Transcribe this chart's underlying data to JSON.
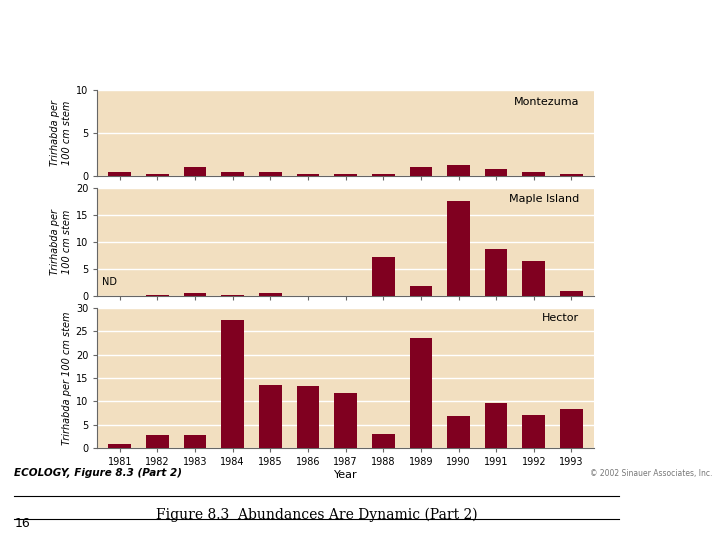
{
  "years": [
    1981,
    1982,
    1983,
    1984,
    1985,
    1986,
    1987,
    1988,
    1989,
    1990,
    1991,
    1992,
    1993
  ],
  "montezuma": [
    0.5,
    0.2,
    1.0,
    0.5,
    0.5,
    0.2,
    0.2,
    0.2,
    1.0,
    1.3,
    0.8,
    0.5,
    0.2
  ],
  "maple_island": [
    0.0,
    0.2,
    0.6,
    0.2,
    0.6,
    0.0,
    0.0,
    7.2,
    1.8,
    17.5,
    8.7,
    6.5,
    1.0
  ],
  "hector": [
    0.8,
    2.8,
    2.8,
    27.5,
    13.5,
    13.3,
    11.8,
    3.0,
    23.5,
    6.8,
    9.7,
    7.0,
    8.3
  ],
  "bar_color": "#800020",
  "bg_color": "#f2dfc0",
  "fig_bg": "#ffffff",
  "montezuma_ylim": [
    0,
    10
  ],
  "montezuma_yticks": [
    0,
    5,
    10
  ],
  "maple_ylim": [
    0,
    20
  ],
  "maple_yticks": [
    0,
    5,
    10,
    15,
    20
  ],
  "hector_ylim": [
    0,
    30
  ],
  "hector_yticks": [
    0,
    5,
    10,
    15,
    20,
    25,
    30
  ],
  "ylabel_montezuma": "Trirhabda per\n100 cm stem",
  "ylabel_maple": "Trirhabda per\n100 cm stem",
  "ylabel_hector": "Trirhabda per 100 cm stem",
  "xlabel": "Year",
  "label_montezuma": "Montezuma",
  "label_maple": "Maple Island",
  "label_hector": "Hector",
  "nd_label": "ND",
  "figure_caption": "Figure 8.3  Abundances Are Dynamic (Part 2)",
  "ecology_label": "ECOLOGY, Figure 8.3 (Part 2)",
  "copyright": "© 2002 Sinauer Associates, Inc.",
  "page_number": "16",
  "grid_color": "#ffffff",
  "tick_fontsize": 7,
  "label_fontsize": 7,
  "site_fontsize": 8,
  "ecology_fontsize": 7.5,
  "caption_fontsize": 10
}
